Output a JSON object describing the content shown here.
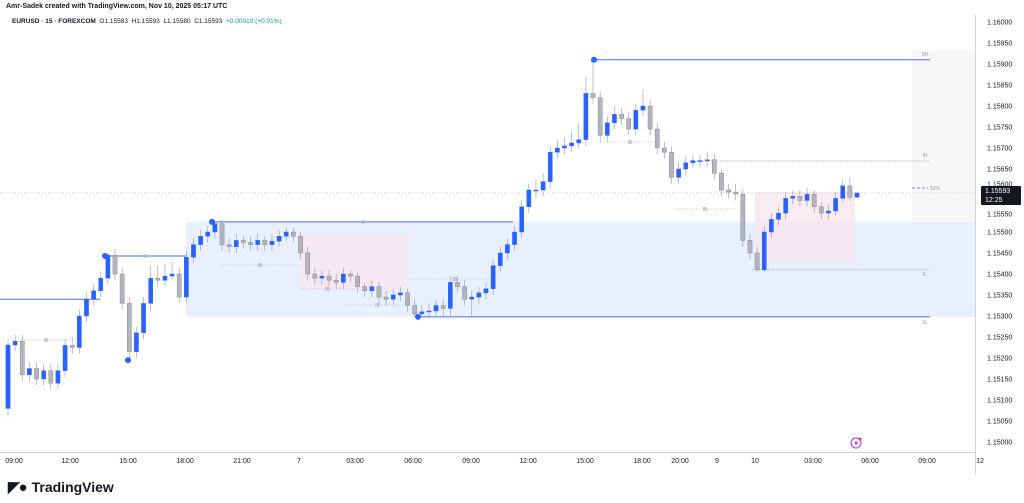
{
  "credit": "Amr-Sadek created with TradingView.com, Nov 10, 2025 05:17 UTC",
  "legend": {
    "symbol": "EURUSD · 15 · FOREXCOM",
    "open": "O1.15583",
    "high": "H1.15593",
    "low": "L1.15580",
    "close": "C1.15593",
    "change": "+0.00010 (+0.01%)"
  },
  "price_label": {
    "price": "1.15593",
    "countdown": "12:25"
  },
  "logo": "TradingView",
  "colors": {
    "up": "#2962ff",
    "down": "#b2b5be",
    "zone": "#e8effd",
    "pink_zone": "#f7e6ef",
    "structure_line": "#4a6fe3"
  },
  "annotations": {
    "sh": "SH",
    "ih": "IH",
    "il": "IL",
    "sl": "SL",
    "fifty": "50%",
    "bos": "B",
    "ibos": "IB"
  },
  "chart_data": {
    "type": "candlestick",
    "symbol": "EURUSD",
    "interval": "15",
    "ylim": [
      1.14975,
      1.16035
    ],
    "y_ticks": [
      "1.16000",
      "1.15950",
      "1.15900",
      "1.15850",
      "1.15800",
      "1.15750",
      "1.15700",
      "1.15650",
      "1.15600",
      "1.15550",
      "1.15500",
      "1.15450",
      "1.15400",
      "1.15350",
      "1.15300",
      "1.15250",
      "1.15200",
      "1.15150",
      "1.15100",
      "1.15050",
      "1.15000"
    ],
    "x_ticks": [
      "09:00",
      "12:00",
      "15:00",
      "18:00",
      "21:00",
      "7",
      "03:00",
      "06:00",
      "09:00",
      "12:00",
      "15:00",
      "18:00",
      "20:00",
      "9",
      "10",
      "03:00",
      "06:00",
      "09:00",
      "12"
    ],
    "levels": {
      "swing_high": 1.1591,
      "internal_high": 1.15669,
      "internal_low": 1.1541,
      "swing_low": 1.15298,
      "zone_top": 1.15524,
      "zone_bottom": 1.15298,
      "early_bos": 1.15443,
      "early_low_line": 1.1534
    },
    "candles_ohlc": [
      [
        1.1508,
        1.15245,
        1.1506,
        1.15231
      ],
      [
        1.15231,
        1.15255,
        1.15216,
        1.1524
      ],
      [
        1.1524,
        1.15255,
        1.15145,
        1.1516
      ],
      [
        1.1516,
        1.1519,
        1.15145,
        1.15175
      ],
      [
        1.15175,
        1.1519,
        1.15135,
        1.1515
      ],
      [
        1.1515,
        1.15185,
        1.15135,
        1.1517
      ],
      [
        1.1517,
        1.15185,
        1.15125,
        1.1514
      ],
      [
        1.1514,
        1.15185,
        1.15125,
        1.1517
      ],
      [
        1.1517,
        1.15245,
        1.15155,
        1.1523
      ],
      [
        1.1523,
        1.1525,
        1.1521,
        1.15225
      ],
      [
        1.15225,
        1.15315,
        1.1521,
        1.153
      ],
      [
        1.153,
        1.15355,
        1.15285,
        1.1534
      ],
      [
        1.1534,
        1.15375,
        1.15325,
        1.1536
      ],
      [
        1.1536,
        1.15405,
        1.15345,
        1.1539
      ],
      [
        1.1539,
        1.1545,
        1.15375,
        1.15445
      ],
      [
        1.15445,
        1.1546,
        1.15385,
        1.154
      ],
      [
        1.154,
        1.15415,
        1.15315,
        1.1533
      ],
      [
        1.1533,
        1.15345,
        1.152,
        1.15215
      ],
      [
        1.15215,
        1.15275,
        1.152,
        1.1526
      ],
      [
        1.1526,
        1.15345,
        1.15245,
        1.1533
      ],
      [
        1.1533,
        1.1542,
        1.15315,
        1.1539
      ],
      [
        1.1539,
        1.1542,
        1.1537,
        1.15385
      ],
      [
        1.15385,
        1.15425,
        1.1537,
        1.15395
      ],
      [
        1.15395,
        1.1543,
        1.15385,
        1.154
      ],
      [
        1.154,
        1.15415,
        1.1533,
        1.15345
      ],
      [
        1.15345,
        1.15455,
        1.1533,
        1.1544
      ],
      [
        1.1544,
        1.15485,
        1.15425,
        1.1547
      ],
      [
        1.1547,
        1.15505,
        1.15455,
        1.1549
      ],
      [
        1.1549,
        1.15515,
        1.15475,
        1.155
      ],
      [
        1.155,
        1.15525,
        1.15485,
        1.1552
      ],
      [
        1.1552,
        1.1553,
        1.15455,
        1.1547
      ],
      [
        1.1547,
        1.15485,
        1.1545,
        1.15465
      ],
      [
        1.15465,
        1.15495,
        1.1545,
        1.1548
      ],
      [
        1.1548,
        1.1549,
        1.1546,
        1.15475
      ],
      [
        1.15475,
        1.1549,
        1.15455,
        1.1547
      ],
      [
        1.1547,
        1.15495,
        1.15455,
        1.1548
      ],
      [
        1.1548,
        1.1549,
        1.15455,
        1.1547
      ],
      [
        1.1547,
        1.15495,
        1.15455,
        1.15478
      ],
      [
        1.15478,
        1.15505,
        1.15465,
        1.1549
      ],
      [
        1.1549,
        1.1551,
        1.1548,
        1.155
      ],
      [
        1.155,
        1.1551,
        1.15475,
        1.1549
      ],
      [
        1.1549,
        1.155,
        1.15435,
        1.1545
      ],
      [
        1.1545,
        1.15465,
        1.15385,
        1.154
      ],
      [
        1.154,
        1.15415,
        1.15375,
        1.1539
      ],
      [
        1.1539,
        1.1541,
        1.15375,
        1.15395
      ],
      [
        1.15395,
        1.1541,
        1.1537,
        1.15385
      ],
      [
        1.15385,
        1.154,
        1.15365,
        1.1538
      ],
      [
        1.1538,
        1.15415,
        1.15365,
        1.154
      ],
      [
        1.154,
        1.1541,
        1.1538,
        1.15395
      ],
      [
        1.15395,
        1.15405,
        1.15355,
        1.1537
      ],
      [
        1.1537,
        1.1538,
        1.15345,
        1.1536
      ],
      [
        1.1536,
        1.15385,
        1.15345,
        1.1537
      ],
      [
        1.1537,
        1.1538,
        1.1533,
        1.15345
      ],
      [
        1.15345,
        1.1536,
        1.15325,
        1.1534
      ],
      [
        1.1534,
        1.15365,
        1.15325,
        1.1535
      ],
      [
        1.1535,
        1.1537,
        1.15335,
        1.15355
      ],
      [
        1.15355,
        1.15365,
        1.1531,
        1.15325
      ],
      [
        1.15325,
        1.1534,
        1.15298,
        1.15305
      ],
      [
        1.15305,
        1.15325,
        1.15298,
        1.1531
      ],
      [
        1.1531,
        1.1533,
        1.15298,
        1.15312
      ],
      [
        1.15312,
        1.1534,
        1.153,
        1.15325
      ],
      [
        1.15325,
        1.1534,
        1.153,
        1.15318
      ],
      [
        1.15318,
        1.15395,
        1.153,
        1.1538
      ],
      [
        1.1538,
        1.15395,
        1.15355,
        1.1537
      ],
      [
        1.1537,
        1.15385,
        1.15325,
        1.1534
      ],
      [
        1.1534,
        1.1536,
        1.153,
        1.15345
      ],
      [
        1.15345,
        1.1537,
        1.1533,
        1.15355
      ],
      [
        1.15355,
        1.1538,
        1.1534,
        1.15365
      ],
      [
        1.15365,
        1.15435,
        1.1535,
        1.1542
      ],
      [
        1.1542,
        1.15465,
        1.15405,
        1.1545
      ],
      [
        1.1545,
        1.15485,
        1.15435,
        1.1547
      ],
      [
        1.1547,
        1.15515,
        1.15455,
        1.155
      ],
      [
        1.155,
        1.15575,
        1.15485,
        1.1556
      ],
      [
        1.1556,
        1.15615,
        1.15545,
        1.156
      ],
      [
        1.156,
        1.15625,
        1.1558,
        1.156
      ],
      [
        1.156,
        1.1564,
        1.15585,
        1.1562
      ],
      [
        1.1562,
        1.15705,
        1.15605,
        1.1569
      ],
      [
        1.1569,
        1.1572,
        1.15675,
        1.157
      ],
      [
        1.157,
        1.15725,
        1.15685,
        1.15705
      ],
      [
        1.15705,
        1.1574,
        1.1569,
        1.15712
      ],
      [
        1.15712,
        1.1576,
        1.157,
        1.1572
      ],
      [
        1.1572,
        1.1587,
        1.15705,
        1.1583
      ],
      [
        1.1583,
        1.1591,
        1.15805,
        1.1582
      ],
      [
        1.1582,
        1.15835,
        1.15715,
        1.1573
      ],
      [
        1.1573,
        1.15775,
        1.15715,
        1.1576
      ],
      [
        1.1576,
        1.158,
        1.15745,
        1.1578
      ],
      [
        1.1578,
        1.15795,
        1.15755,
        1.1577
      ],
      [
        1.1577,
        1.15785,
        1.1573,
        1.15745
      ],
      [
        1.15745,
        1.15805,
        1.1573,
        1.1579
      ],
      [
        1.1579,
        1.1584,
        1.15775,
        1.158
      ],
      [
        1.158,
        1.15815,
        1.1573,
        1.15745
      ],
      [
        1.15745,
        1.1576,
        1.15685,
        1.157
      ],
      [
        1.157,
        1.15715,
        1.15675,
        1.1569
      ],
      [
        1.1569,
        1.15705,
        1.15615,
        1.1563
      ],
      [
        1.1563,
        1.15665,
        1.15615,
        1.1565
      ],
      [
        1.1565,
        1.1568,
        1.15635,
        1.15665
      ],
      [
        1.15665,
        1.15685,
        1.15655,
        1.1567
      ],
      [
        1.1567,
        1.15685,
        1.15655,
        1.1567
      ],
      [
        1.1567,
        1.1569,
        1.15655,
        1.15672
      ],
      [
        1.15672,
        1.15685,
        1.15625,
        1.1564
      ],
      [
        1.1564,
        1.1565,
        1.15585,
        1.156
      ],
      [
        1.156,
        1.15615,
        1.1558,
        1.15595
      ],
      [
        1.15595,
        1.15615,
        1.15575,
        1.1559
      ],
      [
        1.1559,
        1.156,
        1.15465,
        1.1548
      ],
      [
        1.1548,
        1.15495,
        1.15435,
        1.1545
      ],
      [
        1.1545,
        1.15465,
        1.15405,
        1.1541
      ],
      [
        1.1541,
        1.15515,
        1.15405,
        1.155
      ],
      [
        1.155,
        1.15545,
        1.15485,
        1.1553
      ],
      [
        1.1553,
        1.1556,
        1.15515,
        1.15545
      ],
      [
        1.15545,
        1.15595,
        1.1553,
        1.1558
      ],
      [
        1.1558,
        1.156,
        1.15565,
        1.15585
      ],
      [
        1.15585,
        1.156,
        1.1556,
        1.15575
      ],
      [
        1.15575,
        1.15605,
        1.1556,
        1.1559
      ],
      [
        1.1559,
        1.156,
        1.15545,
        1.1556
      ],
      [
        1.1556,
        1.1557,
        1.1553,
        1.15545
      ],
      [
        1.15545,
        1.15565,
        1.1553,
        1.1555
      ],
      [
        1.1555,
        1.15595,
        1.1554,
        1.1558
      ],
      [
        1.1558,
        1.15625,
        1.1557,
        1.1561
      ],
      [
        1.1561,
        1.1563,
        1.15575,
        1.15583
      ],
      [
        1.15583,
        1.15593,
        1.1558,
        1.15593
      ]
    ]
  }
}
